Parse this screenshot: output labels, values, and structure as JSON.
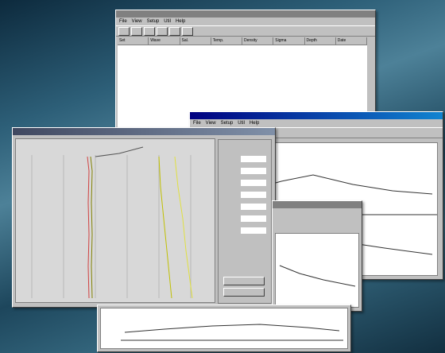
{
  "windows": [
    {
      "menu": [
        "File",
        "View",
        "Setup",
        "Util",
        "Help"
      ],
      "table_header": [
        "Set",
        "Wave",
        "Sal.",
        "Temp.",
        "Density",
        "Sigma",
        "Depth",
        "Date"
      ]
    },
    {
      "menu": [
        "File",
        "View",
        "Setup",
        "Util",
        "Help"
      ]
    }
  ]
}
